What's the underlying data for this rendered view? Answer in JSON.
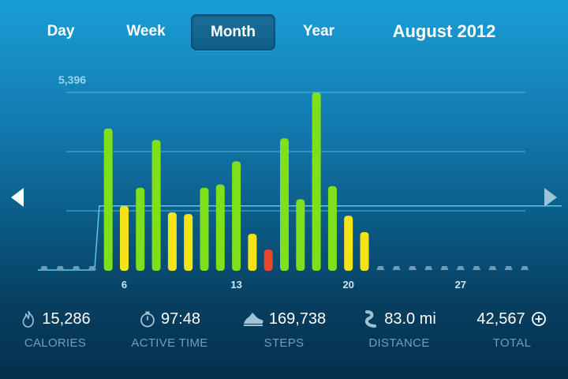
{
  "tabs": [
    {
      "label": "Day",
      "active": false
    },
    {
      "label": "Week",
      "active": false
    },
    {
      "label": "Month",
      "active": true
    },
    {
      "label": "Year",
      "active": false
    }
  ],
  "period_title": "August 2012",
  "icons": {
    "prev": "left-triangle-arrow",
    "next": "right-triangle-arrow",
    "calories": "flame-icon",
    "active_time": "stopwatch-icon",
    "steps": "shoe-icon",
    "distance": "road-icon",
    "total": "fuel-plus-icon"
  },
  "colors": {
    "high": "#7ee01a",
    "mid": "#f5e31a",
    "low": "#e8452c",
    "goal_line": "#5cc6e6",
    "no_data": "#6f9cb3"
  },
  "chart_data": {
    "type": "bar",
    "max_label": "5,396",
    "ylim": [
      0,
      5396
    ],
    "x_ticks": [
      "6",
      "13",
      "20",
      "27"
    ],
    "x_tick_days": [
      6,
      13,
      20,
      27
    ],
    "days_in_month": 31,
    "goal": 1950,
    "goal_from_day": 4,
    "series": [
      {
        "values": [
          0,
          0,
          0,
          0,
          4300,
          1950,
          2500,
          3950,
          1750,
          1700,
          2500,
          2600,
          3300,
          1100,
          620,
          4000,
          2150,
          5396,
          2550,
          1650,
          1150,
          0,
          0,
          0,
          0,
          0,
          0,
          0,
          0,
          0,
          0
        ],
        "levels": [
          "none",
          "none",
          "none",
          "none",
          "high",
          "mid",
          "high",
          "high",
          "mid",
          "mid",
          "high",
          "high",
          "high",
          "mid",
          "low",
          "high",
          "high",
          "high",
          "high",
          "mid",
          "mid",
          "none",
          "none",
          "none",
          "none",
          "none",
          "none",
          "none",
          "none",
          "none",
          "none"
        ]
      }
    ],
    "grid": true
  },
  "stats": [
    {
      "key": "calories",
      "value": "15,286",
      "label": "CALORIES"
    },
    {
      "key": "active_time",
      "value": "97:48",
      "label": "ACTIVE TIME"
    },
    {
      "key": "steps",
      "value": "169,738",
      "label": "STEPS"
    },
    {
      "key": "distance",
      "value": "83.0 mi",
      "label": "DISTANCE"
    },
    {
      "key": "total",
      "value": "42,567",
      "label": "TOTAL"
    }
  ]
}
